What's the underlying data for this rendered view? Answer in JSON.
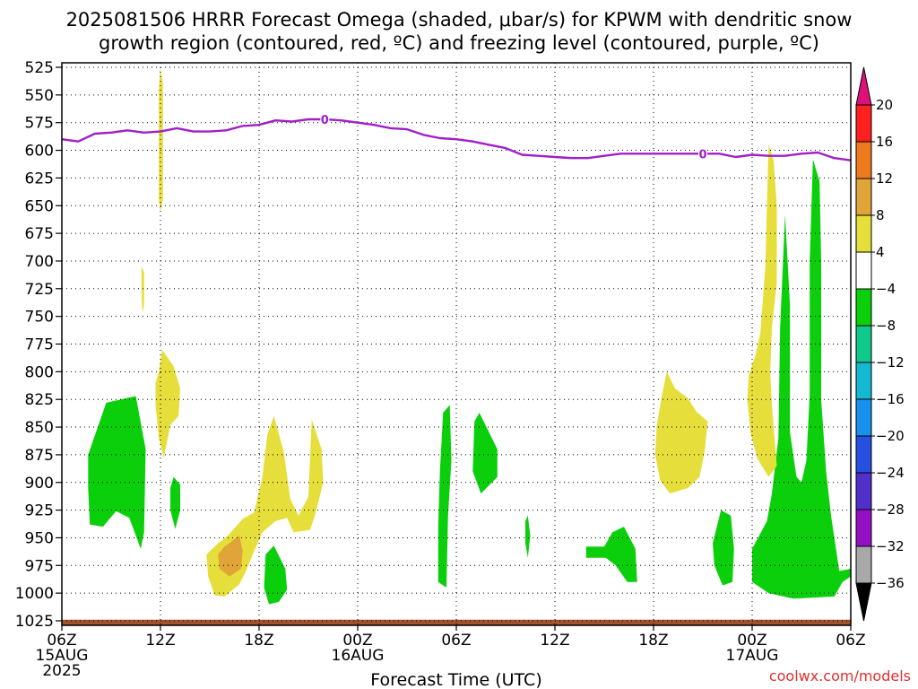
{
  "chart_data": {
    "type": "contour",
    "title_line1": "2025081506 HRRR Forecast Omega (shaded, μbar/s) for KPWM with dendritic snow",
    "title_line2": "growth region (contoured, red, ºC) and freezing level (contoured, purple, ºC)",
    "xlabel": "Forecast Time (UTC)",
    "credit": "coolwx.com/models",
    "y_axis": {
      "ticks": [
        525,
        550,
        575,
        600,
        625,
        650,
        675,
        700,
        725,
        750,
        775,
        800,
        825,
        850,
        875,
        900,
        925,
        950,
        975,
        1000,
        1025
      ],
      "range": [
        1025,
        525
      ],
      "inverted": true,
      "units": "hPa",
      "grid": true
    },
    "x_axis": {
      "range_hours": [
        0,
        48
      ],
      "ticks": [
        {
          "hour": 0,
          "label": "06Z",
          "sub1": "15AUG",
          "sub2": "2025"
        },
        {
          "hour": 6,
          "label": "12Z"
        },
        {
          "hour": 12,
          "label": "18Z"
        },
        {
          "hour": 18,
          "label": "00Z",
          "sub1": "16AUG"
        },
        {
          "hour": 24,
          "label": "06Z"
        },
        {
          "hour": 30,
          "label": "12Z"
        },
        {
          "hour": 36,
          "label": "18Z"
        },
        {
          "hour": 42,
          "label": "00Z",
          "sub1": "17AUG"
        },
        {
          "hour": 48,
          "label": "06Z"
        }
      ],
      "grid": true
    },
    "colorbar": {
      "labels": [
        "20",
        "16",
        "12",
        "8",
        "4",
        "−4",
        "−8",
        "−12",
        "−16",
        "−20",
        "−24",
        "−28",
        "−32",
        "−36"
      ],
      "colors": [
        "#ff2020",
        "#ee7a1e",
        "#e0a438",
        "#e6de3a",
        "#ffffff",
        "#0ccf0c",
        "#10c88a",
        "#14b8d0",
        "#1890ee",
        "#2850e0",
        "#5030c8",
        "#9410c4",
        "#a8a8a8"
      ],
      "top_arrow_color": "#e0107a",
      "bottom_arrow_color": "#000000"
    },
    "freezing_level": {
      "label": "0",
      "color": "#a020c8",
      "points": [
        [
          0,
          590
        ],
        [
          1,
          592
        ],
        [
          2,
          585
        ],
        [
          3,
          584
        ],
        [
          4,
          582
        ],
        [
          5,
          584
        ],
        [
          6,
          583
        ],
        [
          7,
          580
        ],
        [
          8,
          583
        ],
        [
          9,
          583
        ],
        [
          10,
          582
        ],
        [
          11,
          578
        ],
        [
          12,
          577
        ],
        [
          13,
          573
        ],
        [
          14,
          574
        ],
        [
          15,
          572
        ],
        [
          16,
          572
        ],
        [
          17,
          573
        ],
        [
          18,
          575
        ],
        [
          19,
          577
        ],
        [
          20,
          580
        ],
        [
          21,
          581
        ],
        [
          22,
          586
        ],
        [
          23,
          589
        ],
        [
          24,
          590
        ],
        [
          25,
          592
        ],
        [
          26,
          595
        ],
        [
          27,
          598
        ],
        [
          28,
          604
        ],
        [
          29,
          605
        ],
        [
          30,
          606
        ],
        [
          31,
          607
        ],
        [
          32,
          607
        ],
        [
          33,
          605
        ],
        [
          34,
          603
        ],
        [
          35,
          603
        ],
        [
          36,
          603
        ],
        [
          37,
          603
        ],
        [
          38,
          603
        ],
        [
          39,
          603
        ],
        [
          40,
          603
        ],
        [
          41,
          606
        ],
        [
          42,
          604
        ],
        [
          43,
          605
        ],
        [
          44,
          605
        ],
        [
          45,
          603
        ],
        [
          46,
          602
        ],
        [
          47,
          607
        ],
        [
          48,
          609
        ]
      ],
      "labels_at_hours": [
        16,
        39
      ]
    },
    "surface_strip_color": "#a0522d",
    "omega_regions": [
      {
        "color": "#0ccf0c",
        "poly": [
          [
            1.6,
            875
          ],
          [
            2.7,
            828
          ],
          [
            4.5,
            822
          ],
          [
            5.1,
            870
          ],
          [
            5.0,
            945
          ],
          [
            4.8,
            960
          ],
          [
            4.1,
            932
          ],
          [
            3.3,
            926
          ],
          [
            2.5,
            940
          ],
          [
            1.7,
            938
          ],
          [
            1.6,
            905
          ]
        ]
      },
      {
        "color": "#0ccf0c",
        "poly": [
          [
            6.8,
            895
          ],
          [
            7.2,
            902
          ],
          [
            7.2,
            925
          ],
          [
            6.9,
            942
          ],
          [
            6.6,
            925
          ],
          [
            6.6,
            905
          ]
        ]
      },
      {
        "color": "#0ccf0c",
        "poly": [
          [
            12.4,
            965
          ],
          [
            12.9,
            957
          ],
          [
            13.6,
            978
          ],
          [
            13.7,
            997
          ],
          [
            13.2,
            1008
          ],
          [
            12.6,
            1010
          ],
          [
            12.3,
            995
          ]
        ]
      },
      {
        "color": "#0ccf0c",
        "poly": [
          [
            23.2,
            837
          ],
          [
            23.6,
            830
          ],
          [
            23.7,
            880
          ],
          [
            23.5,
            930
          ],
          [
            23.4,
            995
          ],
          [
            22.9,
            990
          ],
          [
            22.9,
            940
          ],
          [
            23.0,
            890
          ]
        ]
      },
      {
        "color": "#0ccf0c",
        "poly": [
          [
            25.1,
            845
          ],
          [
            25.4,
            837
          ],
          [
            26.1,
            858
          ],
          [
            26.5,
            870
          ],
          [
            26.5,
            895
          ],
          [
            25.5,
            910
          ],
          [
            25.0,
            890
          ]
        ]
      },
      {
        "color": "#0ccf0c",
        "poly": [
          [
            28.2,
            935
          ],
          [
            28.35,
            930
          ],
          [
            28.5,
            948
          ],
          [
            28.35,
            968
          ],
          [
            28.2,
            955
          ]
        ]
      },
      {
        "color": "#0ccf0c",
        "poly": [
          [
            31.9,
            958
          ],
          [
            33.0,
            958
          ],
          [
            33.5,
            945
          ],
          [
            34.2,
            940
          ],
          [
            34.9,
            960
          ],
          [
            35.0,
            990
          ],
          [
            34.4,
            990
          ],
          [
            33.7,
            975
          ],
          [
            33.1,
            968
          ],
          [
            31.9,
            968
          ]
        ]
      },
      {
        "color": "#0ccf0c",
        "poly": [
          [
            40.1,
            925
          ],
          [
            40.7,
            930
          ],
          [
            40.9,
            960
          ],
          [
            40.8,
            990
          ],
          [
            40.2,
            993
          ],
          [
            39.7,
            975
          ],
          [
            39.6,
            955
          ]
        ]
      },
      {
        "color": "#0ccf0c",
        "poly": [
          [
            42.0,
            960
          ],
          [
            42.9,
            935
          ],
          [
            43.2,
            910
          ],
          [
            43.6,
            860
          ],
          [
            43.7,
            760
          ],
          [
            44.0,
            658
          ],
          [
            44.3,
            740
          ],
          [
            44.3,
            855
          ],
          [
            44.7,
            895
          ],
          [
            45.0,
            900
          ],
          [
            45.3,
            880
          ],
          [
            45.5,
            820
          ],
          [
            45.5,
            700
          ],
          [
            45.7,
            608
          ],
          [
            46.1,
            628
          ],
          [
            46.2,
            700
          ],
          [
            46.2,
            825
          ],
          [
            46.5,
            890
          ],
          [
            46.8,
            930
          ],
          [
            47.3,
            980
          ],
          [
            48.0,
            978
          ],
          [
            48.0,
            985
          ],
          [
            47.5,
            990
          ],
          [
            47.0,
            1003
          ],
          [
            44.5,
            1005
          ],
          [
            43.0,
            1000
          ],
          [
            42.0,
            990
          ]
        ]
      },
      {
        "color": "#e6de3a",
        "poly": [
          [
            6.0,
            525
          ],
          [
            6.15,
            540
          ],
          [
            6.15,
            645
          ],
          [
            6.0,
            655
          ],
          [
            5.9,
            645
          ],
          [
            5.9,
            545
          ]
        ]
      },
      {
        "color": "#e6de3a",
        "poly": [
          [
            4.85,
            705
          ],
          [
            5.0,
            710
          ],
          [
            5.0,
            740
          ],
          [
            4.9,
            747
          ],
          [
            4.85,
            730
          ]
        ]
      },
      {
        "color": "#e6de3a",
        "poly": [
          [
            5.9,
            800
          ],
          [
            6.1,
            780
          ],
          [
            6.8,
            795
          ],
          [
            7.2,
            815
          ],
          [
            7.1,
            840
          ],
          [
            6.6,
            848
          ],
          [
            6.2,
            878
          ],
          [
            5.9,
            860
          ],
          [
            5.7,
            830
          ],
          [
            5.7,
            810
          ]
        ]
      },
      {
        "color": "#e6de3a",
        "poly": [
          [
            8.8,
            965
          ],
          [
            9.5,
            955
          ],
          [
            10.1,
            948
          ],
          [
            11.0,
            933
          ],
          [
            11.7,
            927
          ],
          [
            12.2,
            895
          ],
          [
            12.5,
            857
          ],
          [
            12.9,
            840
          ],
          [
            13.5,
            872
          ],
          [
            13.9,
            915
          ],
          [
            14.4,
            930
          ],
          [
            15.0,
            913
          ],
          [
            15.2,
            843
          ],
          [
            15.8,
            870
          ],
          [
            15.9,
            900
          ],
          [
            15.4,
            930
          ],
          [
            15.1,
            943
          ],
          [
            14.1,
            945
          ],
          [
            13.7,
            932
          ],
          [
            13.0,
            935
          ],
          [
            12.2,
            945
          ],
          [
            11.7,
            962
          ],
          [
            11.2,
            980
          ],
          [
            10.8,
            992
          ],
          [
            9.9,
            1003
          ],
          [
            9.3,
            1002
          ],
          [
            8.9,
            985
          ]
        ]
      },
      {
        "color": "#e0a438",
        "poly": [
          [
            9.9,
            958
          ],
          [
            10.8,
            948
          ],
          [
            11.0,
            962
          ],
          [
            10.9,
            978
          ],
          [
            10.2,
            985
          ],
          [
            9.6,
            978
          ],
          [
            9.5,
            965
          ]
        ]
      },
      {
        "color": "#e6de3a",
        "poly": [
          [
            36.2,
            848
          ],
          [
            36.5,
            822
          ],
          [
            36.8,
            800
          ],
          [
            37.3,
            815
          ],
          [
            38.1,
            824
          ],
          [
            38.6,
            836
          ],
          [
            39.3,
            845
          ],
          [
            39.1,
            873
          ],
          [
            38.8,
            895
          ],
          [
            38.1,
            905
          ],
          [
            37.0,
            910
          ],
          [
            36.4,
            898
          ],
          [
            36.1,
            875
          ]
        ]
      },
      {
        "color": "#e6de3a",
        "poly": [
          [
            41.8,
            803
          ],
          [
            42.2,
            785
          ],
          [
            42.5,
            765
          ],
          [
            42.8,
            705
          ],
          [
            42.9,
            650
          ],
          [
            43.0,
            595
          ],
          [
            43.3,
            608
          ],
          [
            43.5,
            650
          ],
          [
            43.5,
            720
          ],
          [
            43.2,
            760
          ],
          [
            43.1,
            800
          ],
          [
            43.2,
            830
          ],
          [
            43.5,
            885
          ],
          [
            43.0,
            895
          ],
          [
            42.3,
            878
          ],
          [
            41.9,
            855
          ],
          [
            41.7,
            825
          ]
        ]
      }
    ]
  }
}
